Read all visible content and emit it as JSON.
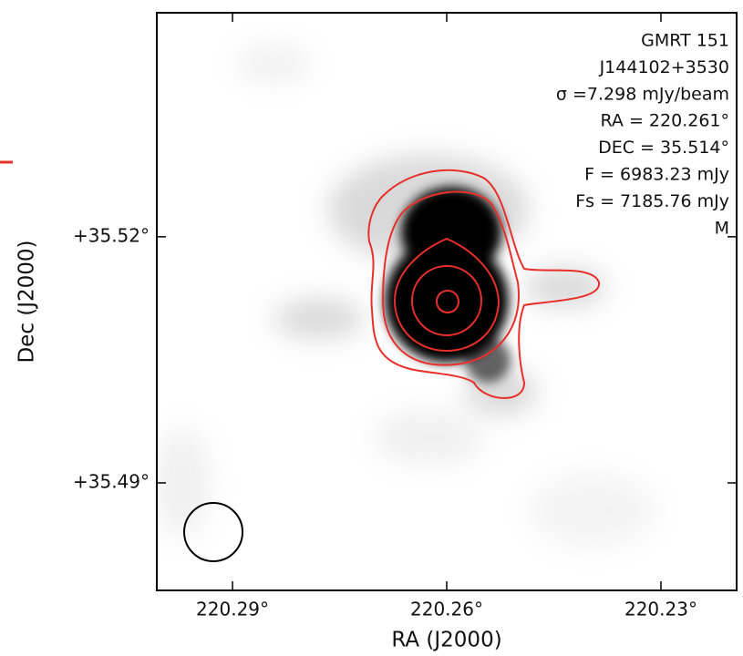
{
  "chart_data": {
    "type": "image",
    "annotations": [
      "GMRT 151",
      "J144102+3530",
      "σ =7.298 mJy/beam",
      "RA = 220.261°",
      "DEC = 35.514°",
      "F = 6983.23 mJy",
      "Fs = 7185.76 mJy",
      "M"
    ],
    "xlabel": "RA (J2000)",
    "ylabel": "Dec (J2000)",
    "xlim": [
      220.3006,
      220.2194
    ],
    "ylim": [
      35.4769,
      35.5473
    ],
    "xticks": [
      {
        "value": 220.29,
        "label": "220.29°"
      },
      {
        "value": 220.26,
        "label": "220.26°"
      },
      {
        "value": 220.23,
        "label": "220.23°"
      }
    ],
    "yticks": [
      {
        "value": 35.49,
        "label": "+35.49°"
      },
      {
        "value": 35.52,
        "label": "+35.52°"
      }
    ],
    "contour_color": "#e8302a"
  }
}
